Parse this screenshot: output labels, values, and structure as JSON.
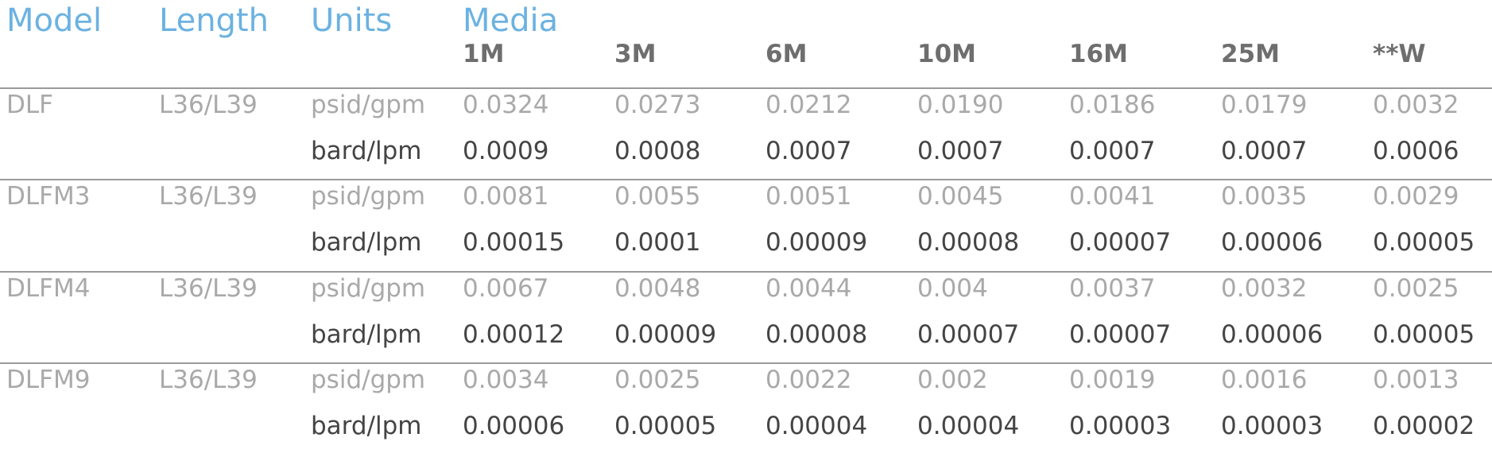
{
  "header": {
    "model": "Model",
    "length": "Length",
    "units": "Units",
    "media": "Media",
    "media_cols": [
      "1M",
      "3M",
      "6M",
      "10M",
      "16M",
      "25M",
      "**W"
    ]
  },
  "rows": [
    {
      "model": "DLF",
      "length": "L36/L39",
      "unit1": "psid/gpm",
      "vals1": [
        "0.0324",
        "0.0273",
        "0.0212",
        "0.0190",
        "0.0186",
        "0.0179",
        "0.0032"
      ],
      "unit2": "bard/lpm",
      "vals2": [
        "0.0009",
        "0.0008",
        "0.0007",
        "0.0007",
        "0.0007",
        "0.0007",
        "0.0006"
      ]
    },
    {
      "model": "DLFM3",
      "length": "L36/L39",
      "unit1": "psid/gpm",
      "vals1": [
        "0.0081",
        "0.0055",
        "0.0051",
        "0.0045",
        "0.0041",
        "0.0035",
        "0.0029"
      ],
      "unit2": "bard/lpm",
      "vals2": [
        "0.00015",
        "0.0001",
        "0.00009",
        "0.00008",
        "0.00007",
        "0.00006",
        "0.00005"
      ]
    },
    {
      "model": "DLFM4",
      "length": "L36/L39",
      "unit1": "psid/gpm",
      "vals1": [
        "0.0067",
        "0.0048",
        "0.0044",
        "0.004",
        "0.0037",
        "0.0032",
        "0.0025"
      ],
      "unit2": "bard/lpm",
      "vals2": [
        "0.00012",
        "0.00009",
        "0.00008",
        "0.00007",
        "0.00007",
        "0.00006",
        "0.00005"
      ]
    },
    {
      "model": "DLFM9",
      "length": "L36/L39",
      "unit1": "psid/gpm",
      "vals1": [
        "0.0034",
        "0.0025",
        "0.0022",
        "0.002",
        "0.0019",
        "0.0016",
        "0.0013"
      ],
      "unit2": "bard/lpm",
      "vals2": [
        "0.00006",
        "0.00005",
        "0.00004",
        "0.00004",
        "0.00003",
        "0.00003",
        "0.00002"
      ]
    }
  ]
}
